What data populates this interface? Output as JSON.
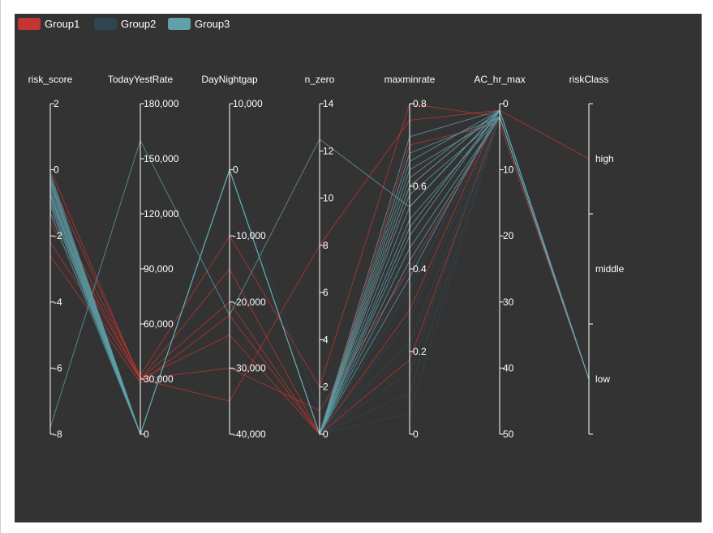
{
  "chart_data": {
    "type": "parallel",
    "legend": [
      {
        "name": "Group1",
        "color": "#c23531"
      },
      {
        "name": "Group2",
        "color": "#2f4554"
      },
      {
        "name": "Group3",
        "color": "#61a0a8"
      }
    ],
    "legend_position": "top-left",
    "axes": [
      {
        "key": "risk_score",
        "name": "risk_score",
        "min": -8,
        "max": 2,
        "ticks": [
          2,
          0,
          -2,
          -4,
          -6,
          -8
        ],
        "tick_labels": [
          "2",
          "0",
          "-2",
          "-4",
          "-6",
          "-8"
        ]
      },
      {
        "key": "TodayYestRate",
        "name": "TodayYestRate",
        "min": 0,
        "max": 180000,
        "ticks": [
          180000,
          150000,
          120000,
          90000,
          60000,
          30000,
          0
        ],
        "tick_labels": [
          "180,000",
          "150,000",
          "120,000",
          "90,000",
          "60,000",
          "30,000",
          "0"
        ]
      },
      {
        "key": "DayNightgap",
        "name": "DayNightgap",
        "min": -40000,
        "max": 10000,
        "ticks": [
          10000,
          0,
          -10000,
          -20000,
          -30000,
          -40000
        ],
        "tick_labels": [
          "10,000",
          "0",
          "-10,000",
          "-20,000",
          "-30,000",
          "-40,000"
        ]
      },
      {
        "key": "n_zero",
        "name": "n_zero",
        "min": 0,
        "max": 14,
        "ticks": [
          14,
          12,
          10,
          8,
          6,
          4,
          2,
          0
        ],
        "tick_labels": [
          "14",
          "12",
          "10",
          "8",
          "6",
          "4",
          "2",
          "0"
        ]
      },
      {
        "key": "maxminrate",
        "name": "maxminrate",
        "min": 0,
        "max": 0.8,
        "ticks": [
          0.8,
          0.6,
          0.4,
          0.2,
          0
        ],
        "tick_labels": [
          "0.8",
          "0.6",
          "0.4",
          "0.2",
          "0"
        ]
      },
      {
        "key": "AC_hr_max",
        "name": "AC_hr_max",
        "min": 0,
        "max": 50,
        "inverse": true,
        "ticks": [
          0,
          10,
          20,
          30,
          40,
          50
        ],
        "tick_labels": [
          "0",
          "10",
          "20",
          "30",
          "40",
          "50"
        ]
      },
      {
        "key": "riskClass",
        "name": "riskClass",
        "type": "category",
        "categories": [
          "high",
          "middle",
          "low"
        ],
        "tick_labels": [
          "high",
          "middle",
          "low"
        ]
      }
    ],
    "series": [
      {
        "group": "Group1",
        "lines": [
          [
            -0.3,
            30000,
            -35000,
            8,
            0.76,
            1,
            "high"
          ],
          [
            -1.0,
            32000,
            -10000,
            2,
            0.8,
            2,
            "low"
          ],
          [
            -1.6,
            30000,
            -20000,
            0,
            0.6,
            1,
            "low"
          ],
          [
            -2.2,
            30000,
            -30000,
            1,
            0.4,
            2,
            "low"
          ],
          [
            -2.6,
            28000,
            -22000,
            0,
            0.7,
            3,
            "low"
          ],
          [
            0.0,
            30000,
            -25000,
            0,
            0.18,
            2,
            "low"
          ],
          [
            -1.3,
            30000,
            -15000,
            0,
            0.3,
            1,
            "low"
          ]
        ]
      },
      {
        "group": "Group2",
        "lines": [
          [
            -0.2,
            0,
            0,
            0,
            0.22,
            2,
            "low"
          ],
          [
            -0.5,
            0,
            0,
            0,
            0.1,
            2,
            "low"
          ],
          [
            -0.8,
            0,
            0,
            0,
            0.35,
            1,
            "low"
          ],
          [
            -1.0,
            0,
            0,
            0,
            0.05,
            2,
            "low"
          ],
          [
            -1.2,
            0,
            0,
            1,
            0.45,
            2,
            "low"
          ],
          [
            -0.4,
            0,
            0,
            0,
            0.5,
            1,
            "low"
          ],
          [
            -0.6,
            0,
            0,
            0,
            0.28,
            2,
            "low"
          ],
          [
            -1.4,
            0,
            0,
            0,
            0.15,
            1,
            "low"
          ],
          [
            -0.9,
            0,
            0,
            0,
            0.58,
            2,
            "low"
          ],
          [
            -0.7,
            0,
            0,
            0,
            0.4,
            1,
            "low"
          ]
        ]
      },
      {
        "group": "Group3",
        "lines": [
          [
            -7.8,
            160000,
            -22000,
            12.5,
            0.55,
            1,
            "low"
          ],
          [
            -0.1,
            0,
            0,
            0,
            0.62,
            1,
            "low"
          ],
          [
            -0.3,
            0,
            0,
            0,
            0.52,
            2,
            "low"
          ],
          [
            -0.5,
            0,
            0,
            0,
            0.66,
            1,
            "low"
          ],
          [
            -0.7,
            0,
            0,
            0,
            0.58,
            2,
            "low"
          ],
          [
            -0.9,
            0,
            0,
            0,
            0.48,
            1,
            "low"
          ],
          [
            -1.1,
            0,
            0,
            0,
            0.72,
            1,
            "low"
          ],
          [
            -0.2,
            0,
            0,
            0,
            0.45,
            2,
            "low"
          ],
          [
            -0.4,
            0,
            0,
            0,
            0.55,
            1,
            "low"
          ],
          [
            -0.6,
            0,
            0,
            0,
            0.68,
            2,
            "low"
          ],
          [
            -0.8,
            0,
            0,
            0,
            0.5,
            1,
            "low"
          ],
          [
            -1.0,
            0,
            0,
            0,
            0.42,
            2,
            "low"
          ],
          [
            -1.3,
            0,
            0,
            0,
            0.6,
            1,
            "low"
          ],
          [
            -0.35,
            0,
            0,
            0,
            0.64,
            2,
            "low"
          ],
          [
            -0.75,
            0,
            0,
            0,
            0.38,
            1,
            "low"
          ]
        ]
      }
    ]
  }
}
